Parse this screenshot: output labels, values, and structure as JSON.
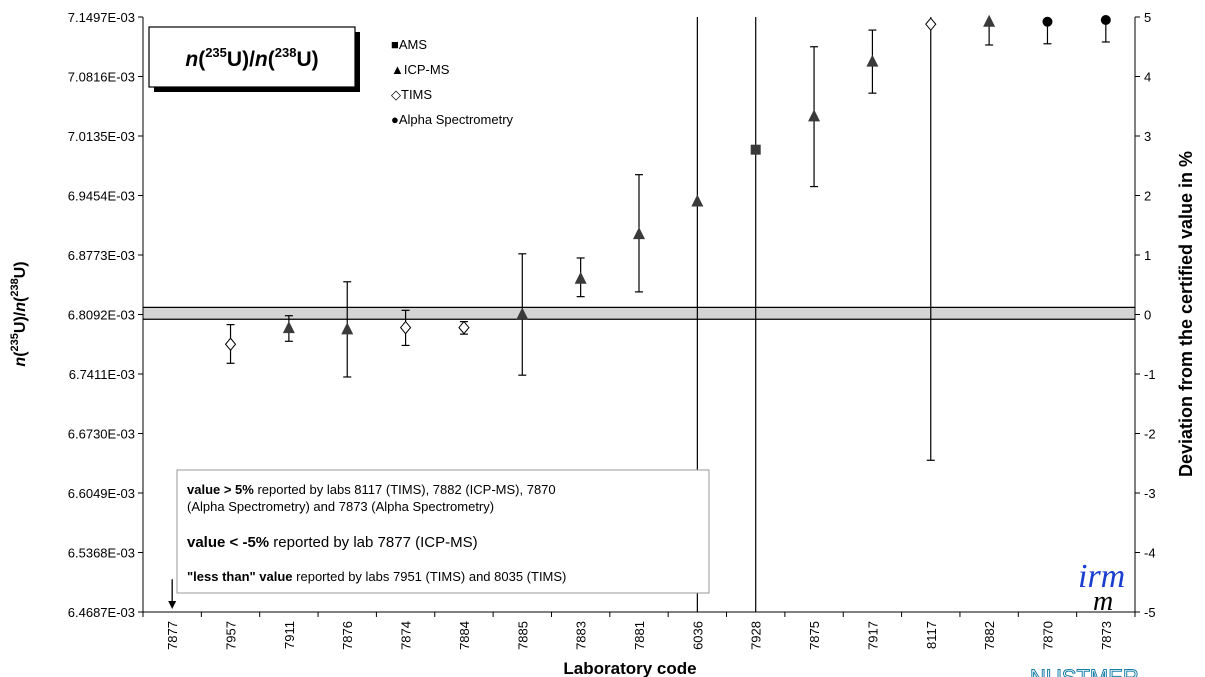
{
  "chart_data": {
    "type": "scatter",
    "title": "",
    "inset_title": {
      "n": "n",
      "iso1": "235",
      "mid": "U)/",
      "n2": "n",
      "iso2": "238",
      "end": "U)"
    },
    "xlabel": "Laboratory code",
    "ylabel_left": {
      "n1": "n",
      "sup1": "235",
      "mid": "U)/",
      "n2": "n",
      "sup2": "238",
      "end": "U)"
    },
    "ylabel_right": "Deviation from the certified value in %",
    "categories": [
      "7877",
      "7957",
      "7911",
      "7876",
      "7874",
      "7884",
      "7885",
      "7883",
      "7881",
      "6036",
      "7928",
      "7875",
      "7917",
      "8117",
      "7882",
      "7870",
      "7873"
    ],
    "y_left_ticks": [
      "7.1497E-03",
      "7.0816E-03",
      "7.0135E-03",
      "6.9454E-03",
      "6.8773E-03",
      "6.8092E-03",
      "6.7411E-03",
      "6.6730E-03",
      "6.6049E-03",
      "6.5368E-03",
      "6.4687E-03"
    ],
    "y_right_ticks": [
      "5",
      "4",
      "3",
      "2",
      "1",
      "0",
      "-1",
      "-2",
      "-3",
      "-4",
      "-5"
    ],
    "ylim_right": [
      -5,
      5
    ],
    "certified_band": [
      -0.08,
      0.12
    ],
    "series": [
      {
        "name": "AMS",
        "marker": "square",
        "points": [
          {
            "x": "7928",
            "y": 2.77,
            "low": -5,
            "high": 5
          }
        ]
      },
      {
        "name": "ICP-MS",
        "marker": "triangle",
        "points": [
          {
            "x": "7911",
            "y": -0.23,
            "low": -0.45,
            "high": -0.02
          },
          {
            "x": "7876",
            "y": -0.25,
            "low": -1.05,
            "high": 0.55
          },
          {
            "x": "7885",
            "y": 0.0,
            "low": -1.02,
            "high": 1.02
          },
          {
            "x": "7883",
            "y": 0.6,
            "low": 0.3,
            "high": 0.95
          },
          {
            "x": "7881",
            "y": 1.35,
            "low": 0.38,
            "high": 2.35
          },
          {
            "x": "6036",
            "y": 1.9,
            "low": -5,
            "high": 5
          },
          {
            "x": "7875",
            "y": 3.33,
            "low": 2.15,
            "high": 4.5
          },
          {
            "x": "7917",
            "y": 4.25,
            "low": 3.72,
            "high": 4.78
          },
          {
            "x": "7882",
            "y": 4.92,
            "low": 4.53,
            "high": 5.0
          }
        ]
      },
      {
        "name": "TIMS",
        "marker": "diamond",
        "points": [
          {
            "x": "7957",
            "y": -0.5,
            "low": -0.82,
            "high": -0.17
          },
          {
            "x": "7874",
            "y": -0.22,
            "low": -0.52,
            "high": 0.07
          },
          {
            "x": "7884",
            "y": -0.22,
            "low": -0.33,
            "high": -0.12
          },
          {
            "x": "8117",
            "y": 4.88,
            "low": -2.45,
            "high": 5.0
          }
        ]
      },
      {
        "name": "Alpha Spectrometry",
        "marker": "circle",
        "points": [
          {
            "x": "7870",
            "y": 4.92,
            "low": 4.55,
            "high": 5.0
          },
          {
            "x": "7873",
            "y": 4.95,
            "low": 4.58,
            "high": 5.0
          }
        ]
      }
    ],
    "less_than": [
      {
        "x": "7877",
        "from": -4.45,
        "to": -4.95
      }
    ],
    "legend": {
      "placement": "top-left",
      "entries": [
        {
          "symbol": "■",
          "label": "AMS"
        },
        {
          "symbol": "▲",
          "label": "ICP-MS"
        },
        {
          "symbol": "◇",
          "label": "TIMS"
        },
        {
          "symbol": "●",
          "label": "Alpha Spectrometry"
        }
      ]
    },
    "notes": {
      "line1_bold": "value > 5%",
      "line1_rest": " reported by labs 8117 (TIMS), 7882 (ICP-MS), 7870",
      "line2": "(Alpha Spectrometry) and 7873 (Alpha Spectrometry)",
      "line3_bold": "value < -5%",
      "line3_rest": " reported by lab 7877 (ICP-MS)",
      "line4_bold": "\"less than\" value",
      "line4_rest": "  reported by labs 7951 (TIMS) and 8035 (TIMS)"
    },
    "logo": {
      "top": "irm",
      "bottom": "m"
    },
    "footer_fragment": "NUSTMER"
  }
}
